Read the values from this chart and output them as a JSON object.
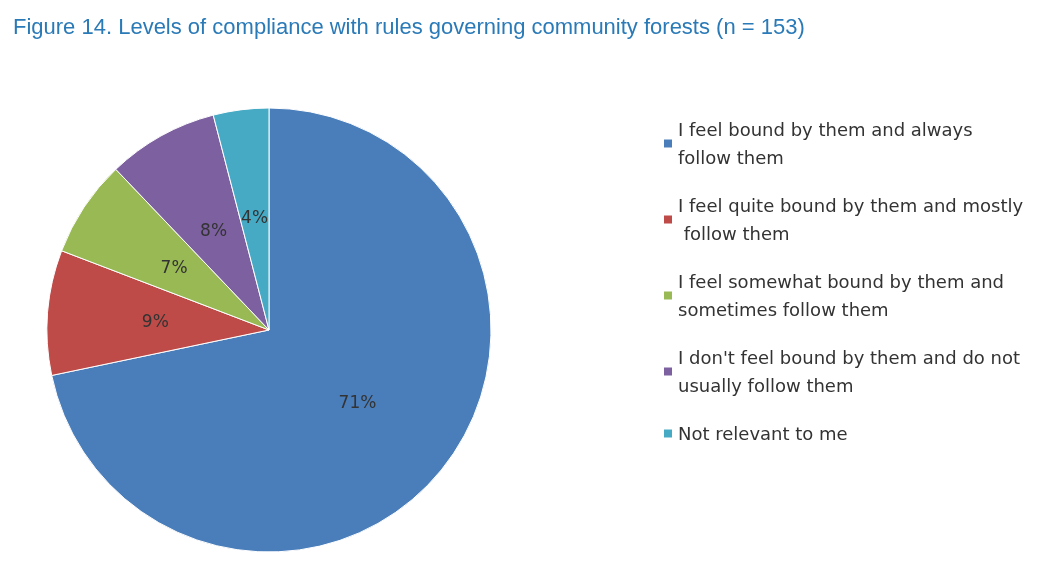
{
  "chart_data": {
    "type": "pie",
    "title": "Figure 14. Levels of compliance with rules governing community forests (n = 153)",
    "categories": [
      "I feel bound by them and always follow them",
      "I feel quite bound by them and mostly follow them",
      "I feel somewhat bound by them and sometimes follow them",
      "I don't feel bound by them and do not usually follow them",
      "Not relevant to me"
    ],
    "values": [
      71,
      9,
      7,
      8,
      4
    ],
    "colors": [
      "#4a7ebb",
      "#be4b48",
      "#98b954",
      "#7d60a0",
      "#46aac5"
    ],
    "value_labels": [
      "71%",
      "9%",
      "7%",
      "8%",
      "4%"
    ],
    "legend": "right"
  }
}
